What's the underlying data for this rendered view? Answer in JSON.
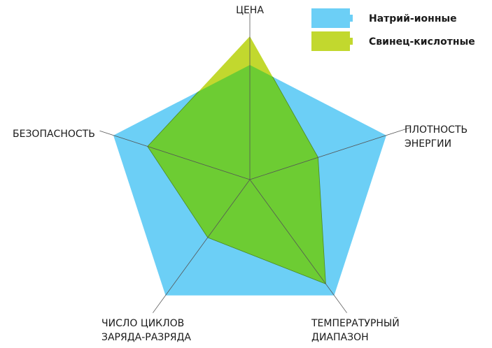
{
  "chart_data": {
    "type": "radar",
    "axes": [
      {
        "label_lines": [
          "ЦЕНА"
        ]
      },
      {
        "label_lines": [
          "ПЛОТНОСТЬ",
          "ЭНЕРГИИ"
        ]
      },
      {
        "label_lines": [
          "ТЕМПЕРАТУРНЫЙ",
          "ДИАПАЗОН"
        ]
      },
      {
        "label_lines": [
          "ЧИСЛО ЦИКЛОВ",
          "ЗАРЯДА-РАЗРЯДА"
        ]
      },
      {
        "label_lines": [
          "БЕЗОПАСНОСТЬ"
        ]
      }
    ],
    "max": 1.0,
    "series": [
      {
        "name": "Натрий-ионные",
        "color": "#6ccff6",
        "values": [
          0.8,
          1.0,
          1.0,
          1.0,
          1.0
        ]
      },
      {
        "name": "Свинец-кислотные",
        "color": "#c2d82e",
        "values": [
          1.0,
          0.5,
          0.9,
          0.5,
          0.75
        ]
      }
    ],
    "overlap_color": "#6dcc33",
    "legend": {
      "position": "top-right",
      "icon": "battery-icon"
    }
  }
}
